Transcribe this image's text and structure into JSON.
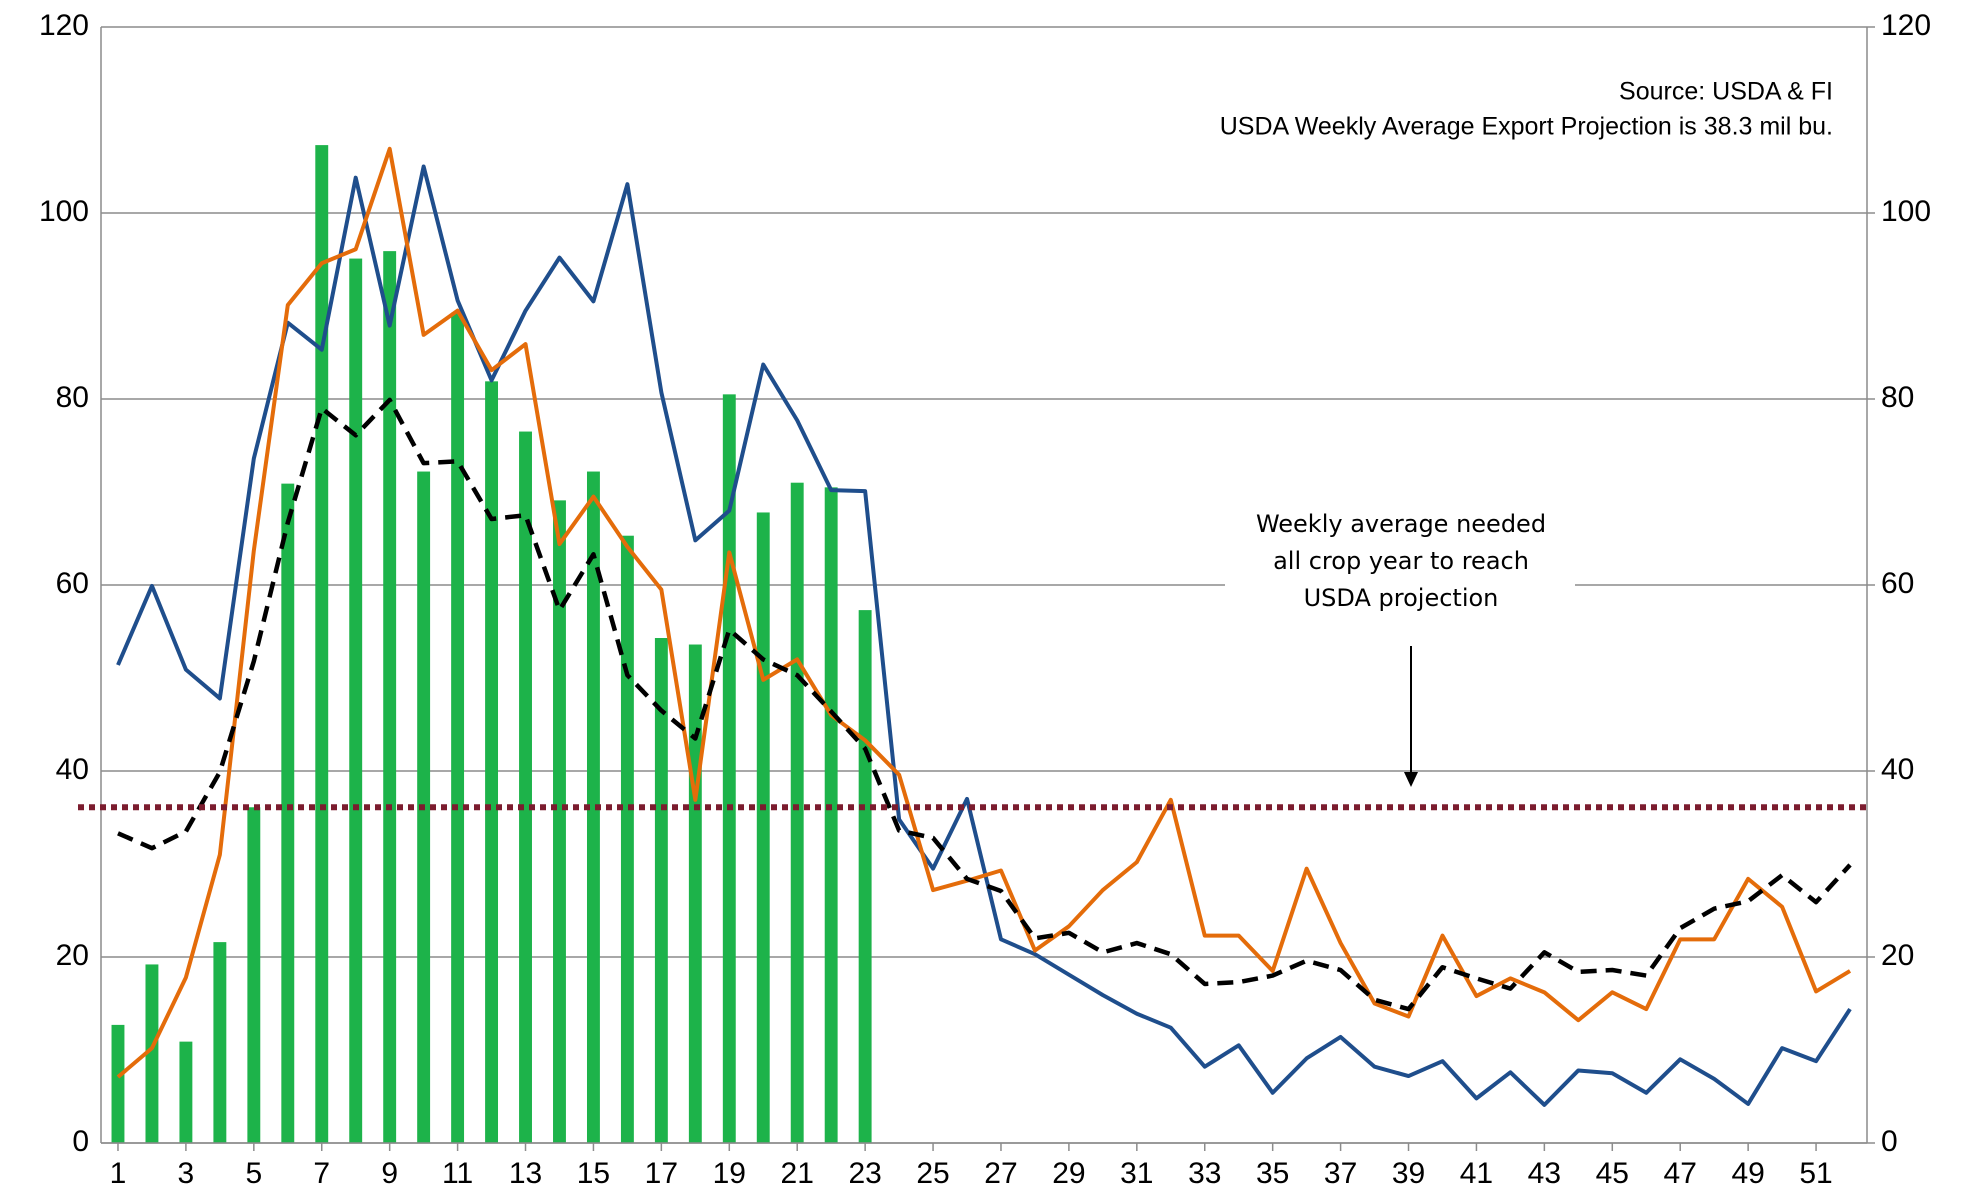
{
  "chart_data": {
    "type": "combo",
    "source_lines": [
      "Source: USDA & FI",
      "USDA Weekly Average Export Projection is 38.3 mil bu."
    ],
    "annotation_lines": [
      "Weekly average needed",
      "all crop year to reach",
      "USDA projection"
    ],
    "x": [
      1,
      2,
      3,
      4,
      5,
      6,
      7,
      8,
      9,
      10,
      11,
      12,
      13,
      14,
      15,
      16,
      17,
      18,
      19,
      20,
      21,
      22,
      23,
      24,
      25,
      26,
      27,
      28,
      29,
      30,
      31,
      32,
      33,
      34,
      35,
      36,
      37,
      38,
      39,
      40,
      41,
      42,
      43,
      44,
      45,
      46,
      47,
      48,
      49,
      50,
      51,
      52
    ],
    "xlim": [
      0.5,
      52.5
    ],
    "xticks": [
      1,
      3,
      5,
      7,
      9,
      11,
      13,
      15,
      17,
      19,
      21,
      23,
      25,
      27,
      29,
      31,
      33,
      35,
      37,
      39,
      41,
      43,
      45,
      47,
      49,
      51
    ],
    "ylim": [
      0,
      120
    ],
    "yticks": [
      0,
      20,
      40,
      60,
      80,
      100,
      120
    ],
    "y2lim": [
      0,
      120
    ],
    "y2ticks": [
      0,
      20,
      40,
      60,
      80,
      100,
      120
    ],
    "grid": true,
    "series": [
      {
        "type": "bar",
        "color": "#1db34a",
        "values": [
          12.7,
          19.2,
          10.9,
          21.6,
          36.1,
          70.9,
          107.3,
          95.1,
          95.9,
          72.2,
          89.3,
          81.9,
          76.5,
          69.1,
          72.2,
          65.3,
          54.3,
          53.6,
          80.5,
          67.8,
          71.0,
          70.5,
          57.3,
          null,
          null,
          null,
          null,
          null,
          null,
          null,
          null,
          null,
          null,
          null,
          null,
          null,
          null,
          null,
          null,
          null,
          null,
          null,
          null,
          null,
          null,
          null,
          null,
          null,
          null,
          null,
          null,
          null
        ]
      },
      {
        "type": "line",
        "color": "#1f4e8c",
        "dash": "solid",
        "values": [
          51.4,
          59.9,
          50.9,
          47.8,
          73.6,
          88.2,
          85.3,
          103.8,
          87.9,
          105.0,
          90.6,
          82.0,
          89.5,
          95.2,
          90.5,
          103.1,
          80.7,
          64.8,
          68.0,
          83.7,
          77.7,
          70.2,
          70.1,
          34.8,
          29.5,
          37.0,
          21.9,
          20.3,
          18.1,
          15.9,
          13.9,
          12.4,
          8.2,
          10.5,
          5.4,
          9.1,
          11.4,
          8.2,
          7.2,
          8.8,
          4.8,
          7.6,
          4.1,
          7.8,
          7.5,
          5.4,
          9.0,
          6.9,
          4.2,
          10.2,
          8.8,
          14.4
        ]
      },
      {
        "type": "line",
        "color": "#e46c0a",
        "dash": "solid",
        "values": [
          7.1,
          10.2,
          17.8,
          31.0,
          63.7,
          90.1,
          94.6,
          96.1,
          106.9,
          86.9,
          89.5,
          83.1,
          85.9,
          64.4,
          69.5,
          64.1,
          59.5,
          36.9,
          63.5,
          49.8,
          52.0,
          46.0,
          43.3,
          39.6,
          27.2,
          28.2,
          29.3,
          20.7,
          23.3,
          27.2,
          30.2,
          36.9,
          22.3,
          22.3,
          18.5,
          29.5,
          21.5,
          15.0,
          13.6,
          22.3,
          15.8,
          17.7,
          16.2,
          13.2,
          16.2,
          14.4,
          21.9,
          21.9,
          28.4,
          25.4,
          16.3,
          18.5
        ]
      },
      {
        "type": "line",
        "color": "#000000",
        "dash": "dashed",
        "values": [
          33.3,
          31.7,
          33.5,
          39.9,
          51.8,
          66.7,
          79.0,
          76.1,
          79.9,
          73.1,
          73.3,
          67.1,
          67.5,
          57.3,
          63.3,
          50.3,
          46.5,
          43.5,
          55.2,
          52.0,
          50.3,
          46.4,
          42.4,
          33.6,
          32.8,
          28.4,
          27.1,
          22.0,
          22.6,
          20.5,
          21.5,
          20.3,
          17.1,
          17.3,
          18.0,
          19.6,
          18.6,
          15.4,
          14.4,
          18.9,
          17.7,
          16.6,
          20.5,
          18.4,
          18.6,
          18.0,
          23.1,
          25.2,
          26.0,
          28.8,
          25.9,
          29.9
        ]
      }
    ],
    "reference_line": {
      "value": 36.1,
      "color": "#7b1c2e",
      "dash": "dotted"
    }
  }
}
